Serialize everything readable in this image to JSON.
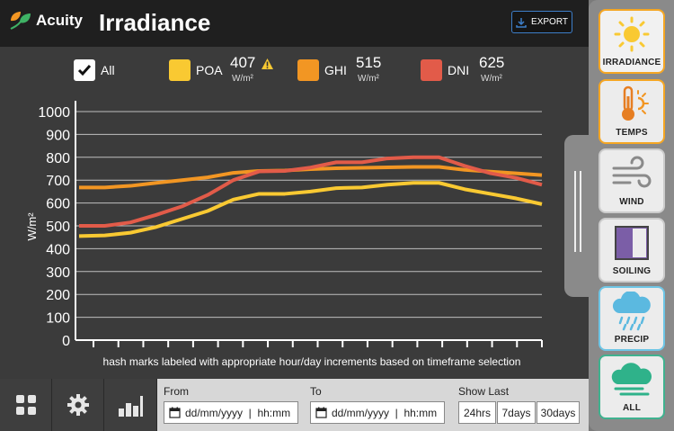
{
  "header": {
    "logo_text": "Acuity",
    "title": "Irradiance",
    "export_label": "EXPORT"
  },
  "legend": {
    "all_label": "All",
    "items": [
      {
        "label": "POA",
        "value": "407",
        "unit": "W/m²",
        "color": "#f9c932",
        "warning": true
      },
      {
        "label": "GHI",
        "value": "515",
        "unit": "W/m²",
        "color": "#f29623",
        "warning": false
      },
      {
        "label": "DNI",
        "value": "625",
        "unit": "W/m²",
        "color": "#e25b49",
        "warning": false
      }
    ]
  },
  "chart_data": {
    "type": "line",
    "ylabel": "W/m²",
    "xlabel": "hash marks labeled with appropriate hour/day increments based on timeframe selection",
    "ylim": [
      0,
      1000
    ],
    "yticks": [
      "0",
      "100",
      "200",
      "300",
      "400",
      "500",
      "600",
      "700",
      "800",
      "900",
      "1000"
    ],
    "x": [
      0,
      1,
      2,
      3,
      4,
      5,
      6,
      7,
      8,
      9,
      10,
      11,
      12,
      13,
      14,
      15,
      16,
      17,
      18
    ],
    "grid": true,
    "series": [
      {
        "name": "POA",
        "color": "#f9c932",
        "values": [
          455,
          458,
          470,
          495,
          530,
          565,
          615,
          640,
          640,
          650,
          665,
          668,
          680,
          688,
          688,
          660,
          640,
          620,
          595
        ]
      },
      {
        "name": "GHI",
        "color": "#f29623",
        "values": [
          668,
          668,
          675,
          688,
          700,
          712,
          732,
          740,
          742,
          748,
          752,
          754,
          756,
          758,
          758,
          745,
          737,
          730,
          722
        ]
      },
      {
        "name": "DNI",
        "color": "#e25b49",
        "values": [
          500,
          500,
          515,
          548,
          585,
          635,
          700,
          738,
          740,
          755,
          778,
          778,
          795,
          800,
          800,
          762,
          730,
          710,
          680
        ]
      }
    ]
  },
  "bottom": {
    "from_label": "From",
    "to_label": "To",
    "show_last_label": "Show Last",
    "from_placeholder": "dd/mm/yyyy  |  hh:mm",
    "to_placeholder": "dd/mm/yyyy  |  hh:mm",
    "ranges": [
      "24hrs",
      "7days",
      "30days"
    ]
  },
  "sidebar": {
    "items": [
      {
        "label": "IRRADIANCE",
        "icon": "sun-icon",
        "active": true
      },
      {
        "label": "TEMPS",
        "icon": "thermometer-icon",
        "active": false
      },
      {
        "label": "WIND",
        "icon": "wind-icon",
        "active": false
      },
      {
        "label": "SOILING",
        "icon": "soiling-icon",
        "active": false
      },
      {
        "label": "PRECIP",
        "icon": "rain-cloud-icon",
        "active": false
      },
      {
        "label": "ALL",
        "icon": "cloud-all-icon",
        "active": false
      }
    ]
  }
}
